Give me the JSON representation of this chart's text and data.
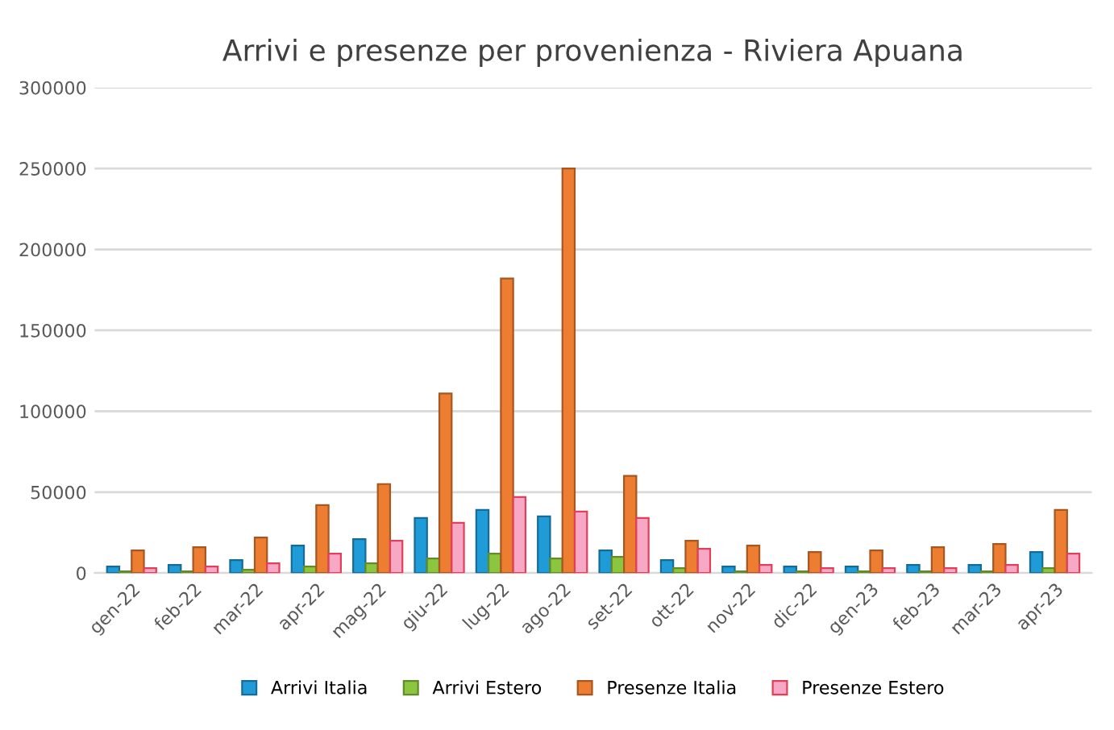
{
  "chart_data": {
    "type": "bar",
    "title": "Arrivi e presenze per provenienza - Riviera Apuana",
    "categories": [
      "gen-22",
      "feb-22",
      "mar-22",
      "apr-22",
      "mag-22",
      "giu-22",
      "lug-22",
      "ago-22",
      "set-22",
      "ott-22",
      "nov-22",
      "dic-22",
      "gen-23",
      "feb-23",
      "mar-23",
      "apr-23"
    ],
    "series": [
      {
        "name": "Arrivi Italia",
        "color": "#1f9bd7",
        "values": [
          4000,
          5000,
          8000,
          17000,
          21000,
          34000,
          39000,
          35000,
          14000,
          8000,
          4000,
          4000,
          4000,
          5000,
          5000,
          13000
        ]
      },
      {
        "name": "Arrivi Estero",
        "color": "#8cc63f",
        "values": [
          1000,
          1000,
          2000,
          4000,
          6000,
          9000,
          12000,
          9000,
          10000,
          3000,
          1000,
          1000,
          1000,
          1000,
          1000,
          3000
        ]
      },
      {
        "name": "Presenze Italia",
        "color": "#ed7d31",
        "values": [
          14000,
          16000,
          22000,
          42000,
          55000,
          111000,
          182000,
          250000,
          60000,
          20000,
          17000,
          13000,
          14000,
          16000,
          18000,
          39000
        ]
      },
      {
        "name": "Presenze Estero",
        "color": "#f7a8c4",
        "values": [
          3000,
          4000,
          6000,
          12000,
          20000,
          31000,
          47000,
          38000,
          34000,
          15000,
          5000,
          3000,
          3000,
          3000,
          5000,
          12000
        ]
      }
    ],
    "ylim": [
      0,
      300000
    ],
    "yticks": [
      0,
      50000,
      100000,
      150000,
      200000,
      250000,
      300000
    ],
    "grid": "y",
    "legend": "bottom"
  }
}
